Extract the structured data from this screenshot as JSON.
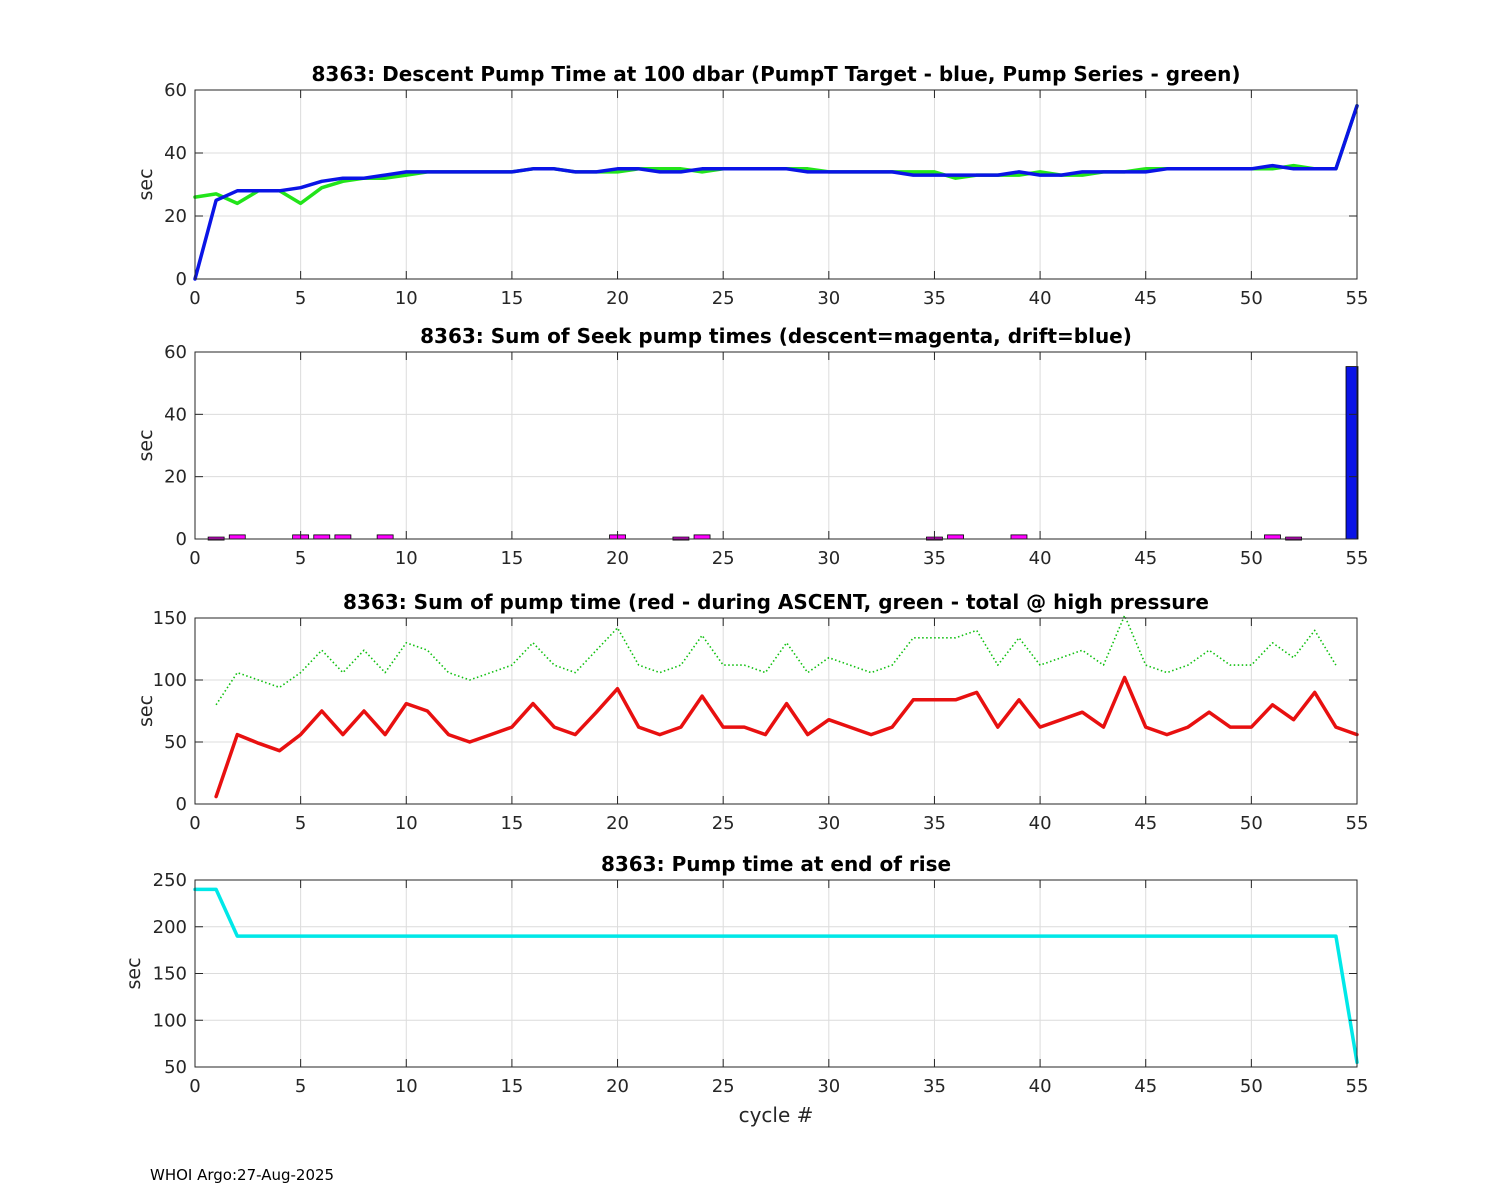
{
  "footer": "WHOI Argo:27-Aug-2025",
  "colors": {
    "blue": "#0a14e6",
    "green": "#22e41a",
    "magenta": "#ff00ff",
    "red": "#e81010",
    "cyan": "#00e8e8",
    "dotgreen": "#10c010"
  },
  "chart_data": [
    {
      "type": "line",
      "title": "8363: Descent Pump Time at 100 dbar (PumpT Target - blue, Pump Series - green)",
      "xlabel": "",
      "ylabel": "sec",
      "xlim": [
        0,
        55
      ],
      "ylim": [
        0,
        60
      ],
      "xticks": [
        "0",
        "5",
        "10",
        "15",
        "20",
        "25",
        "30",
        "35",
        "40",
        "45",
        "50",
        "55"
      ],
      "yticks": [
        "0",
        "20",
        "40",
        "60"
      ],
      "grid": true,
      "series": [
        {
          "color": "green",
          "style": "solid",
          "x": [
            0,
            1,
            2,
            3,
            4,
            5,
            6,
            7,
            8,
            9,
            10,
            11,
            12,
            13,
            14,
            15,
            16,
            17,
            18,
            19,
            20,
            21,
            22,
            23,
            24,
            25,
            26,
            27,
            28,
            29,
            30,
            31,
            32,
            33,
            34,
            35,
            36,
            37,
            38,
            39,
            40,
            41,
            42,
            43,
            44,
            45,
            46,
            47,
            48,
            49,
            50,
            51,
            52,
            53,
            54,
            55
          ],
          "y": [
            26,
            27,
            24,
            28,
            28,
            24,
            29,
            31,
            32,
            32,
            33,
            34,
            34,
            34,
            34,
            34,
            35,
            35,
            34,
            34,
            34,
            35,
            35,
            35,
            34,
            35,
            35,
            35,
            35,
            35,
            34,
            34,
            34,
            34,
            34,
            34,
            32,
            33,
            33,
            33,
            34,
            33,
            33,
            34,
            34,
            35,
            35,
            35,
            35,
            35,
            35,
            35,
            36,
            35,
            35,
            55
          ]
        },
        {
          "color": "blue",
          "style": "solid",
          "x": [
            0,
            1,
            2,
            3,
            4,
            5,
            6,
            7,
            8,
            9,
            10,
            11,
            12,
            13,
            14,
            15,
            16,
            17,
            18,
            19,
            20,
            21,
            22,
            23,
            24,
            25,
            26,
            27,
            28,
            29,
            30,
            31,
            32,
            33,
            34,
            35,
            36,
            37,
            38,
            39,
            40,
            41,
            42,
            43,
            44,
            45,
            46,
            47,
            48,
            49,
            50,
            51,
            52,
            53,
            54,
            55
          ],
          "y": [
            0,
            25,
            28,
            28,
            28,
            29,
            31,
            32,
            32,
            33,
            34,
            34,
            34,
            34,
            34,
            34,
            35,
            35,
            34,
            34,
            35,
            35,
            34,
            34,
            35,
            35,
            35,
            35,
            35,
            34,
            34,
            34,
            34,
            34,
            33,
            33,
            33,
            33,
            33,
            34,
            33,
            33,
            34,
            34,
            34,
            34,
            35,
            35,
            35,
            35,
            35,
            36,
            35,
            35,
            35,
            55
          ]
        }
      ]
    },
    {
      "type": "bar",
      "title": "8363: Sum of Seek pump times (descent=magenta, drift=blue)",
      "xlabel": "",
      "ylabel": "sec",
      "xlim": [
        0,
        55
      ],
      "ylim": [
        0,
        60
      ],
      "xticks": [
        "0",
        "5",
        "10",
        "15",
        "20",
        "25",
        "30",
        "35",
        "40",
        "45",
        "50",
        "55"
      ],
      "yticks": [
        "0",
        "20",
        "40",
        "60"
      ],
      "grid": true,
      "series": [
        {
          "color": "magenta",
          "x": [
            1,
            2,
            5,
            6,
            7,
            9,
            20,
            23,
            24,
            35,
            36,
            39,
            51,
            52
          ],
          "values": [
            0.3,
            1,
            1,
            1,
            1,
            1,
            1,
            0.3,
            1,
            0.3,
            1,
            1,
            1,
            0.3
          ]
        },
        {
          "color": "blue",
          "x": [
            55
          ],
          "values": [
            55
          ]
        }
      ]
    },
    {
      "type": "line",
      "title": "8363: Sum of pump time (red - during ASCENT, green - total @ high pressure",
      "xlabel": "",
      "ylabel": "sec",
      "xlim": [
        0,
        55
      ],
      "ylim": [
        0,
        150
      ],
      "xticks": [
        "0",
        "5",
        "10",
        "15",
        "20",
        "25",
        "30",
        "35",
        "40",
        "45",
        "50",
        "55"
      ],
      "yticks": [
        "0",
        "50",
        "100",
        "150"
      ],
      "grid": true,
      "series": [
        {
          "color": "dotgreen",
          "style": "dotted",
          "x": [
            1,
            2,
            3,
            4,
            5,
            6,
            7,
            8,
            9,
            10,
            11,
            12,
            13,
            14,
            15,
            16,
            17,
            18,
            19,
            20,
            21,
            22,
            23,
            24,
            25,
            26,
            27,
            28,
            29,
            30,
            31,
            32,
            33,
            34,
            35,
            36,
            37,
            38,
            39,
            40,
            41,
            42,
            43,
            44,
            45,
            46,
            47,
            48,
            49,
            50,
            51,
            52,
            53,
            54
          ],
          "y": [
            80,
            106,
            100,
            94,
            106,
            124,
            106,
            124,
            106,
            130,
            124,
            106,
            100,
            106,
            112,
            130,
            112,
            106,
            124,
            142,
            112,
            106,
            112,
            136,
            112,
            112,
            106,
            130,
            106,
            118,
            112,
            106,
            112,
            134,
            134,
            134,
            140,
            112,
            134,
            112,
            118,
            124,
            112,
            152,
            112,
            106,
            112,
            124,
            112,
            112,
            130,
            118,
            140,
            112
          ]
        },
        {
          "color": "red",
          "style": "solid",
          "x": [
            1,
            2,
            3,
            4,
            5,
            6,
            7,
            8,
            9,
            10,
            11,
            12,
            13,
            14,
            15,
            16,
            17,
            18,
            19,
            20,
            21,
            22,
            23,
            24,
            25,
            26,
            27,
            28,
            29,
            30,
            31,
            32,
            33,
            34,
            35,
            36,
            37,
            38,
            39,
            40,
            41,
            42,
            43,
            44,
            45,
            46,
            47,
            48,
            49,
            50,
            51,
            52,
            53,
            54,
            55
          ],
          "y": [
            6,
            56,
            49,
            43,
            56,
            75,
            56,
            75,
            56,
            81,
            75,
            56,
            50,
            56,
            62,
            81,
            62,
            56,
            74,
            93,
            62,
            56,
            62,
            87,
            62,
            62,
            56,
            81,
            56,
            68,
            62,
            56,
            62,
            84,
            84,
            84,
            90,
            62,
            84,
            62,
            68,
            74,
            62,
            102,
            62,
            56,
            62,
            74,
            62,
            62,
            80,
            68,
            90,
            62,
            56
          ]
        }
      ]
    },
    {
      "type": "line",
      "title": "8363: Pump time at end of rise",
      "xlabel": "cycle #",
      "ylabel": "sec",
      "xlim": [
        0,
        55
      ],
      "ylim": [
        50,
        250
      ],
      "xticks": [
        "0",
        "5",
        "10",
        "15",
        "20",
        "25",
        "30",
        "35",
        "40",
        "45",
        "50",
        "55"
      ],
      "yticks": [
        "50",
        "100",
        "150",
        "200",
        "250"
      ],
      "grid": true,
      "series": [
        {
          "color": "cyan",
          "style": "solid",
          "x": [
            0,
            1,
            2,
            3,
            4,
            5,
            6,
            7,
            8,
            9,
            10,
            11,
            12,
            13,
            14,
            15,
            16,
            17,
            18,
            19,
            20,
            21,
            22,
            23,
            24,
            25,
            26,
            27,
            28,
            29,
            30,
            31,
            32,
            33,
            34,
            35,
            36,
            37,
            38,
            39,
            40,
            41,
            42,
            43,
            44,
            45,
            46,
            47,
            48,
            49,
            50,
            51,
            52,
            53,
            54,
            55
          ],
          "y": [
            240,
            240,
            190,
            190,
            190,
            190,
            190,
            190,
            190,
            190,
            190,
            190,
            190,
            190,
            190,
            190,
            190,
            190,
            190,
            190,
            190,
            190,
            190,
            190,
            190,
            190,
            190,
            190,
            190,
            190,
            190,
            190,
            190,
            190,
            190,
            190,
            190,
            190,
            190,
            190,
            190,
            190,
            190,
            190,
            190,
            190,
            190,
            190,
            190,
            190,
            190,
            190,
            190,
            190,
            190,
            55
          ]
        }
      ]
    }
  ]
}
